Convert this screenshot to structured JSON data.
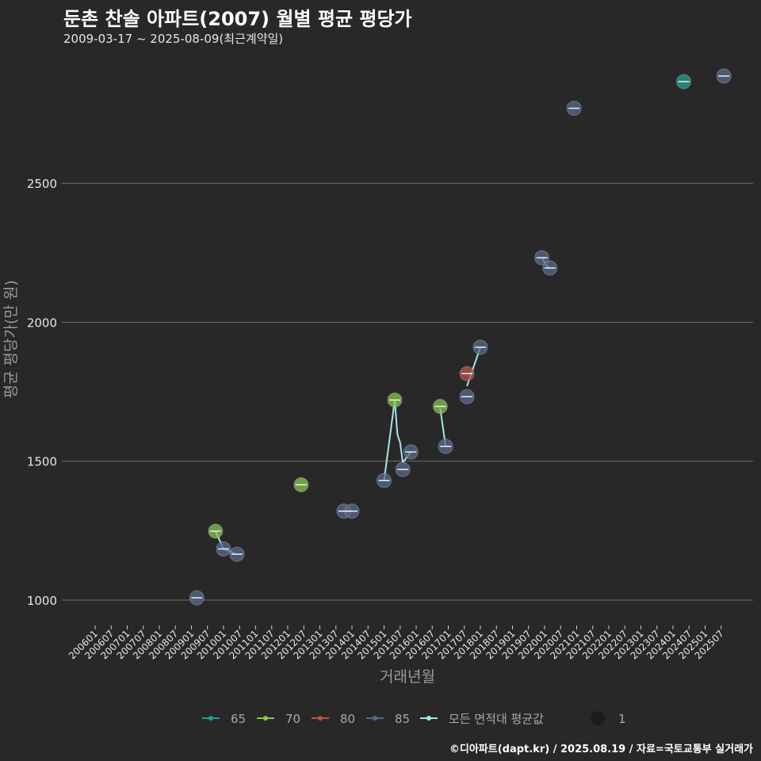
{
  "title": "둔촌 찬솔 아파트(2007) 월별 평균 평당가",
  "subtitle": "2009-03-17 ~ 2025-08-09(최근계약일)",
  "caption": "©디아파트(dapt.kr) / 2025.08.19 / 자료=국토교통부 실거래가",
  "chart_data": {
    "type": "scatter",
    "xlabel": "거래년월",
    "ylabel": "평균 평당가(만 원)",
    "yticks": [
      1000,
      1500,
      2000,
      2500
    ],
    "ylim": [
      920,
      2960
    ],
    "xticks": [
      "200601",
      "200607",
      "200701",
      "200707",
      "200801",
      "200807",
      "200901",
      "200907",
      "201001",
      "201007",
      "201101",
      "201107",
      "201201",
      "201207",
      "201301",
      "201307",
      "201401",
      "201407",
      "201501",
      "201507",
      "201601",
      "201607",
      "201701",
      "201707",
      "201801",
      "201807",
      "201901",
      "201907",
      "202001",
      "202007",
      "202101",
      "202107",
      "202201",
      "202207",
      "202301",
      "202307",
      "202401",
      "202407",
      "202501",
      "202507"
    ],
    "xlim": [
      "200601",
      "202601"
    ],
    "grid": true,
    "legend_position": "bottom",
    "series": [
      {
        "name": "65",
        "color": "#2a9d8f",
        "points": [
          {
            "x": "202405",
            "y": 2866
          }
        ]
      },
      {
        "name": "70",
        "color": "#8bc34a",
        "points": [
          {
            "x": "200910",
            "y": 1248
          },
          {
            "x": "201206",
            "y": 1415
          },
          {
            "x": "201505",
            "y": 1720
          },
          {
            "x": "201610",
            "y": 1697
          }
        ]
      },
      {
        "name": "80",
        "color": "#c0504d",
        "points": [
          {
            "x": "201708",
            "y": 1815
          }
        ]
      },
      {
        "name": "85",
        "color": "#5a6a8a",
        "points": [
          {
            "x": "200903",
            "y": 1008
          },
          {
            "x": "201001",
            "y": 1184
          },
          {
            "x": "201006",
            "y": 1165
          },
          {
            "x": "201310",
            "y": 1320
          },
          {
            "x": "201401",
            "y": 1320
          },
          {
            "x": "201501",
            "y": 1430
          },
          {
            "x": "201508",
            "y": 1470
          },
          {
            "x": "201511",
            "y": 1533
          },
          {
            "x": "201612",
            "y": 1553
          },
          {
            "x": "201708",
            "y": 1732
          },
          {
            "x": "201801",
            "y": 1910
          },
          {
            "x": "201912",
            "y": 2232
          },
          {
            "x": "202003",
            "y": 2195
          },
          {
            "x": "202012",
            "y": 2770
          },
          {
            "x": "202508",
            "y": 2886
          }
        ]
      }
    ],
    "average_line": {
      "name": "모든 면적대 평균값",
      "color": "#a8e6e6",
      "points": [
        {
          "x": "200903",
          "y": 1008
        },
        {
          "x": "200910",
          "y": 1248
        },
        {
          "x": "201001",
          "y": 1184
        },
        {
          "x": "201006",
          "y": 1165
        },
        {
          "x": "201206",
          "y": 1415
        },
        {
          "x": "201310",
          "y": 1320
        },
        {
          "x": "201401",
          "y": 1320
        },
        {
          "x": "201501",
          "y": 1430
        },
        {
          "x": "201505",
          "y": 1720
        },
        {
          "x": "201506",
          "y": 1595
        },
        {
          "x": "201507",
          "y": 1567
        },
        {
          "x": "201508",
          "y": 1495
        },
        {
          "x": "201511",
          "y": 1533
        },
        {
          "x": "201610",
          "y": 1690
        },
        {
          "x": "201611",
          "y": 1622
        },
        {
          "x": "201612",
          "y": 1553
        },
        {
          "x": "201708",
          "y": 1770
        },
        {
          "x": "201801",
          "y": 1910
        },
        {
          "x": "201912",
          "y": 2232
        },
        {
          "x": "202002",
          "y": 2200
        },
        {
          "x": "202003",
          "y": 2195
        },
        {
          "x": "202012",
          "y": 2770
        },
        {
          "x": "202405",
          "y": 2866
        },
        {
          "x": "202508",
          "y": 2886
        }
      ]
    },
    "size_legend": {
      "label": "1"
    }
  }
}
